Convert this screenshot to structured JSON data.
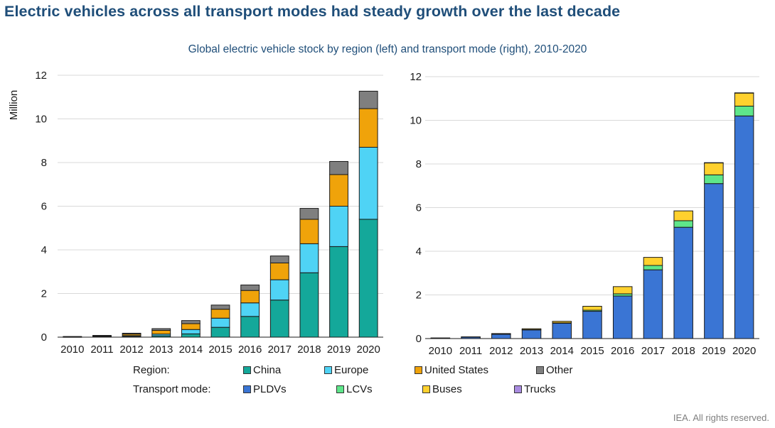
{
  "title": "Electric vehicles across all transport modes had steady growth over the last decade",
  "subtitle": "Global electric vehicle stock by region (left) and transport mode (right), 2010-2020",
  "footer": "IEA. All rights reserved.",
  "legend": {
    "region_label": "Region:",
    "mode_label": "Transport mode:",
    "region_items": [
      {
        "name": "China",
        "color": "#14a89a"
      },
      {
        "name": "Europe",
        "color": "#4fd3f5"
      },
      {
        "name": "United States",
        "color": "#f0a30a"
      },
      {
        "name": "Other",
        "color": "#7f7f7f"
      }
    ],
    "mode_items": [
      {
        "name": "PLDVs",
        "color": "#3a75d4"
      },
      {
        "name": "LCVs",
        "color": "#5ee68a"
      },
      {
        "name": "Buses",
        "color": "#ffd12e"
      },
      {
        "name": "Trucks",
        "color": "#a98be0"
      }
    ]
  },
  "chart_data": [
    {
      "type": "bar",
      "stacked": true,
      "ylabel": "Million",
      "ylim": [
        0,
        12
      ],
      "yticks": [
        "0",
        "2",
        "4",
        "6",
        "8",
        "10",
        "12"
      ],
      "categories": [
        "2010",
        "2011",
        "2012",
        "2013",
        "2014",
        "2015",
        "2016",
        "2017",
        "2018",
        "2019",
        "2020"
      ],
      "series": [
        {
          "name": "China",
          "color": "#14a89a",
          "values": [
            0.01,
            0.02,
            0.03,
            0.06,
            0.15,
            0.45,
            0.95,
            1.7,
            2.95,
            4.15,
            5.4
          ]
        },
        {
          "name": "Europe",
          "color": "#4fd3f5",
          "values": [
            0.0,
            0.01,
            0.04,
            0.08,
            0.2,
            0.42,
            0.62,
            0.93,
            1.33,
            1.85,
            3.3
          ]
        },
        {
          "name": "United States",
          "color": "#f0a30a",
          "values": [
            0.0,
            0.02,
            0.07,
            0.17,
            0.27,
            0.41,
            0.57,
            0.77,
            1.12,
            1.45,
            1.77
          ]
        },
        {
          "name": "Other",
          "color": "#7f7f7f",
          "values": [
            0.02,
            0.03,
            0.04,
            0.08,
            0.14,
            0.19,
            0.25,
            0.32,
            0.5,
            0.6,
            0.8
          ]
        }
      ]
    },
    {
      "type": "bar",
      "stacked": true,
      "ylim": [
        0,
        12
      ],
      "yticks": [
        "0",
        "2",
        "4",
        "6",
        "8",
        "10",
        "12"
      ],
      "categories": [
        "2010",
        "2011",
        "2012",
        "2013",
        "2014",
        "2015",
        "2016",
        "2017",
        "2018",
        "2019",
        "2020"
      ],
      "series": [
        {
          "name": "PLDVs",
          "color": "#3a75d4",
          "values": [
            0.02,
            0.07,
            0.2,
            0.4,
            0.7,
            1.25,
            1.95,
            3.15,
            5.1,
            7.1,
            10.2
          ]
        },
        {
          "name": "LCVs",
          "color": "#5ee68a",
          "values": [
            0.0,
            0.0,
            0.01,
            0.01,
            0.02,
            0.05,
            0.1,
            0.2,
            0.3,
            0.4,
            0.45
          ]
        },
        {
          "name": "Buses",
          "color": "#ffd12e",
          "values": [
            0.01,
            0.01,
            0.02,
            0.04,
            0.07,
            0.18,
            0.33,
            0.37,
            0.45,
            0.55,
            0.6
          ]
        },
        {
          "name": "Trucks",
          "color": "#a98be0",
          "values": [
            0.0,
            0.0,
            0.0,
            0.0,
            0.0,
            0.0,
            0.0,
            0.0,
            0.0,
            0.01,
            0.01
          ]
        }
      ]
    }
  ]
}
